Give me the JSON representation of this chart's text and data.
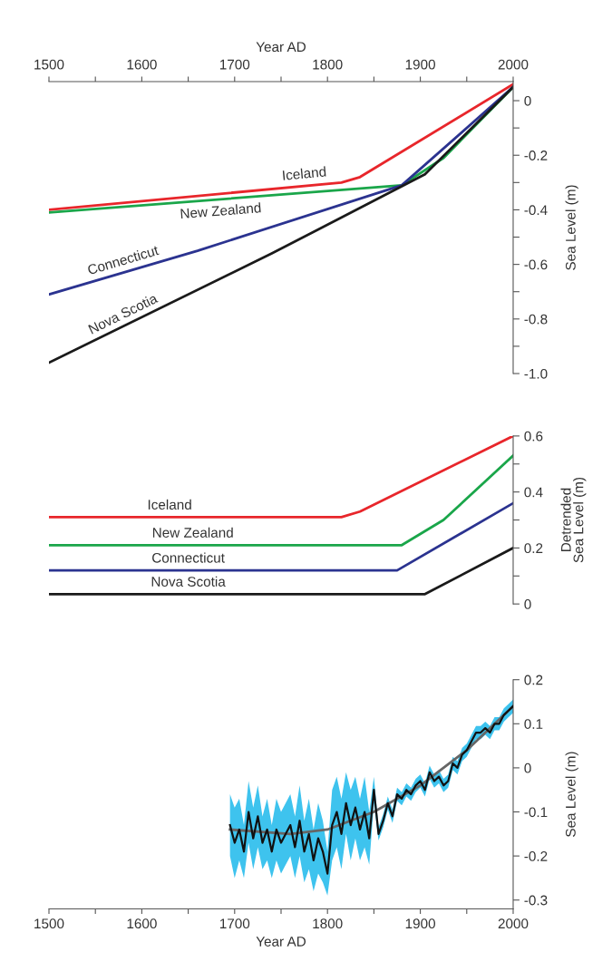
{
  "chart_data": [
    {
      "type": "line",
      "xlabel": "Year AD",
      "ylabel": "Sea Level (m)",
      "xlim": [
        1500,
        2000
      ],
      "xticks": [
        1500,
        {
          "value": 1550,
          "label": null
        },
        1600,
        {
          "value": 1650,
          "label": null
        },
        1700,
        {
          "value": 1750,
          "label": null
        },
        1800,
        {
          "value": 1850,
          "label": null
        },
        1900,
        {
          "value": 1950,
          "label": null
        },
        2000
      ],
      "ylim": [
        -1.0,
        0.07
      ],
      "yticks": [
        {
          "value": 0,
          "label": "0"
        },
        {
          "value": -0.1,
          "label": null
        },
        {
          "value": -0.2,
          "label": "-0.2"
        },
        {
          "value": -0.3,
          "label": null
        },
        {
          "value": -0.4,
          "label": "-0.4"
        },
        {
          "value": -0.5,
          "label": null
        },
        {
          "value": -0.6,
          "label": "-0.6"
        },
        {
          "value": -0.7,
          "label": null
        },
        {
          "value": -0.8,
          "label": "-0.8"
        },
        {
          "value": -0.9,
          "label": null
        },
        {
          "value": -1.0,
          "label": "-1.0"
        }
      ],
      "series": [
        {
          "name": "Iceland",
          "color": "#e8262b",
          "x": [
            1500,
            1815,
            1835,
            2000
          ],
          "values": [
            -0.4,
            -0.3,
            -0.28,
            0.06
          ]
        },
        {
          "name": "New Zealand",
          "color": "#1aa64a",
          "x": [
            1500,
            1880,
            1925,
            2000
          ],
          "values": [
            -0.41,
            -0.31,
            -0.21,
            0.05
          ]
        },
        {
          "name": "Connecticut",
          "color": "#2b3390",
          "x": [
            1500,
            1660,
            1880,
            2000
          ],
          "values": [
            -0.71,
            -0.55,
            -0.31,
            0.05
          ]
        },
        {
          "name": "Nova Scotia",
          "color": "#1a1a1a",
          "x": [
            1500,
            1740,
            1905,
            2000
          ],
          "values": [
            -0.96,
            -0.56,
            -0.27,
            0.05
          ]
        }
      ]
    },
    {
      "type": "line",
      "ylabel": "Detrended\nSea Level (m)",
      "xlim": [
        1500,
        2000
      ],
      "ylim": [
        0,
        0.6
      ],
      "yticks": [
        0,
        {
          "value": 0.1,
          "label": null
        },
        0.2,
        {
          "value": 0.3,
          "label": null
        },
        0.4,
        {
          "value": 0.5,
          "label": null
        },
        0.6
      ],
      "series": [
        {
          "name": "Iceland",
          "color": "#e8262b",
          "x": [
            1500,
            1815,
            1835,
            2000
          ],
          "values": [
            0.31,
            0.31,
            0.33,
            0.6
          ]
        },
        {
          "name": "New Zealand",
          "color": "#1aa64a",
          "x": [
            1500,
            1880,
            1925,
            2000
          ],
          "values": [
            0.21,
            0.21,
            0.3,
            0.53
          ]
        },
        {
          "name": "Connecticut",
          "color": "#2b3390",
          "x": [
            1500,
            1875,
            2000
          ],
          "values": [
            0.12,
            0.12,
            0.36
          ]
        },
        {
          "name": "Nova Scotia",
          "color": "#1a1a1a",
          "x": [
            1500,
            1905,
            2000
          ],
          "values": [
            0.035,
            0.035,
            0.2
          ]
        }
      ]
    },
    {
      "type": "line",
      "xlabel": "Year AD",
      "ylabel": "Sea Level (m)",
      "xlim": [
        1500,
        2000
      ],
      "xticks": [
        1500,
        {
          "value": 1550,
          "label": null
        },
        1600,
        {
          "value": 1650,
          "label": null
        },
        1700,
        {
          "value": 1750,
          "label": null
        },
        1800,
        {
          "value": 1850,
          "label": null
        },
        1900,
        {
          "value": 1950,
          "label": null
        },
        2000
      ],
      "ylim": [
        -0.32,
        0.2
      ],
      "yticks": [
        0.2,
        0.1,
        0,
        -0.1,
        -0.2,
        -0.3
      ],
      "series": [
        {
          "color": "#111111",
          "x": [
            1695,
            1700,
            1705,
            1710,
            1715,
            1720,
            1725,
            1730,
            1735,
            1740,
            1745,
            1750,
            1755,
            1760,
            1765,
            1770,
            1775,
            1780,
            1785,
            1790,
            1795,
            1800,
            1805,
            1810,
            1815,
            1820,
            1825,
            1830,
            1835,
            1840,
            1845,
            1850,
            1855,
            1860,
            1865,
            1870,
            1875,
            1880,
            1885,
            1890,
            1895,
            1900,
            1905,
            1910,
            1915,
            1920,
            1925,
            1930,
            1935,
            1940,
            1945,
            1950,
            1955,
            1960,
            1965,
            1970,
            1975,
            1980,
            1985,
            1990,
            1995,
            2000
          ],
          "values": [
            -0.13,
            -0.17,
            -0.14,
            -0.19,
            -0.1,
            -0.16,
            -0.11,
            -0.17,
            -0.14,
            -0.19,
            -0.14,
            -0.17,
            -0.15,
            -0.13,
            -0.18,
            -0.12,
            -0.19,
            -0.15,
            -0.21,
            -0.16,
            -0.19,
            -0.24,
            -0.13,
            -0.1,
            -0.15,
            -0.08,
            -0.13,
            -0.09,
            -0.14,
            -0.1,
            -0.16,
            -0.05,
            -0.15,
            -0.12,
            -0.08,
            -0.11,
            -0.06,
            -0.07,
            -0.05,
            -0.06,
            -0.04,
            -0.03,
            -0.05,
            -0.01,
            -0.03,
            -0.02,
            -0.04,
            -0.03,
            0.01,
            0.0,
            0.03,
            0.04,
            0.06,
            0.08,
            0.08,
            0.09,
            0.08,
            0.1,
            0.1,
            0.12,
            0.13,
            0.14
          ],
          "upper": [
            -0.06,
            -0.09,
            -0.07,
            -0.13,
            -0.03,
            -0.09,
            -0.04,
            -0.11,
            -0.07,
            -0.13,
            -0.07,
            -0.1,
            -0.08,
            -0.06,
            -0.11,
            -0.04,
            -0.12,
            -0.07,
            -0.14,
            -0.08,
            -0.12,
            -0.19,
            -0.05,
            -0.02,
            -0.07,
            -0.01,
            -0.05,
            -0.02,
            -0.07,
            -0.02,
            -0.1,
            -0.02,
            -0.135,
            -0.105,
            -0.065,
            -0.095,
            -0.045,
            -0.055,
            -0.035,
            -0.045,
            -0.025,
            -0.015,
            -0.035,
            0.005,
            -0.015,
            -0.005,
            -0.025,
            -0.015,
            0.025,
            0.015,
            0.045,
            0.055,
            0.075,
            0.095,
            0.095,
            0.105,
            0.095,
            0.115,
            0.115,
            0.135,
            0.145,
            0.155
          ],
          "lower": [
            -0.2,
            -0.25,
            -0.21,
            -0.25,
            -0.17,
            -0.23,
            -0.18,
            -0.23,
            -0.21,
            -0.25,
            -0.21,
            -0.24,
            -0.22,
            -0.2,
            -0.25,
            -0.2,
            -0.26,
            -0.23,
            -0.28,
            -0.24,
            -0.26,
            -0.29,
            -0.21,
            -0.18,
            -0.23,
            -0.15,
            -0.21,
            -0.16,
            -0.21,
            -0.18,
            -0.22,
            -0.08,
            -0.165,
            -0.135,
            -0.095,
            -0.125,
            -0.075,
            -0.085,
            -0.065,
            -0.075,
            -0.055,
            -0.045,
            -0.065,
            -0.025,
            -0.045,
            -0.035,
            -0.055,
            -0.045,
            -0.005,
            -0.015,
            0.015,
            0.025,
            0.045,
            0.065,
            0.065,
            0.075,
            0.065,
            0.085,
            0.085,
            0.105,
            0.115,
            0.125
          ]
        },
        {
          "color": "#666666",
          "x": [
            1695,
            1760,
            1800,
            1850,
            1900,
            1950,
            2000
          ],
          "values": [
            -0.14,
            -0.15,
            -0.14,
            -0.1,
            -0.04,
            0.04,
            0.14
          ]
        }
      ]
    }
  ]
}
